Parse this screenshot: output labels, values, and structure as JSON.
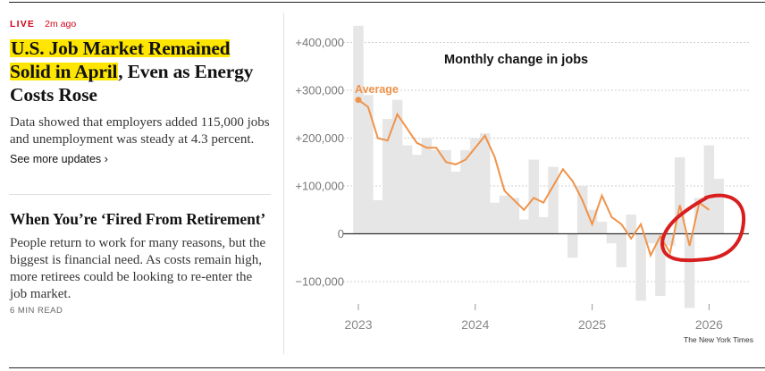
{
  "story1": {
    "live_label": "LIVE",
    "time_ago": "2m ago",
    "headline_highlighted": "U.S. Job Market Remained Solid in April",
    "headline_rest": ", Even as Energy Costs Rose",
    "summary": "Data showed that employers added 115,000 jobs and unemployment was steady at 4.3 percent.",
    "more_link": "See more updates ›"
  },
  "story2": {
    "headline": "When You’re ‘Fired From Retirement’",
    "summary": "People return to work for many reasons, but the biggest is financial need. As costs remain high, more retirees could be looking to re-enter the job market.",
    "read_time": "6 MIN READ"
  },
  "chart_data": {
    "type": "bar",
    "title": "Monthly change in jobs",
    "average_label": "Average",
    "credit": "The New York Times",
    "yticks": [
      {
        "value": 400000,
        "label": "+400,000"
      },
      {
        "value": 300000,
        "label": "+300,000"
      },
      {
        "value": 200000,
        "label": "+200,000"
      },
      {
        "value": 100000,
        "label": "+100,000"
      },
      {
        "value": 0,
        "label": "0"
      },
      {
        "value": -100000,
        "label": "−100,000"
      }
    ],
    "xticks": [
      {
        "month_index": 0,
        "label": "2023"
      },
      {
        "month_index": 12,
        "label": "2024"
      },
      {
        "month_index": 24,
        "label": "2025"
      },
      {
        "month_index": 36,
        "label": "2026"
      }
    ],
    "ylim": [
      -130000,
      440000
    ],
    "start_month": "2023-01",
    "values": [
      435000,
      290000,
      70000,
      240000,
      280000,
      185000,
      165000,
      200000,
      175000,
      175000,
      130000,
      175000,
      200000,
      210000,
      65000,
      80000,
      75000,
      30000,
      155000,
      35000,
      140000,
      0,
      -50000,
      100000,
      50000,
      25000,
      -20000,
      -70000,
      40000,
      -140000,
      -20000,
      -130000,
      -25000,
      160000,
      -155000,
      75000,
      185000,
      115000
    ],
    "average": [
      280000,
      265000,
      200000,
      195000,
      250000,
      220000,
      190000,
      180000,
      180000,
      150000,
      145000,
      155000,
      180000,
      205000,
      160000,
      90000,
      70000,
      50000,
      75000,
      65000,
      100000,
      135000,
      110000,
      70000,
      20000,
      80000,
      35000,
      20000,
      -10000,
      20000,
      -45000,
      -5000,
      -40000,
      60000,
      -25000,
      65000,
      50000
    ]
  },
  "annotation": {
    "color": "#d81e1e",
    "description_shape": "hand-drawn-circle"
  }
}
